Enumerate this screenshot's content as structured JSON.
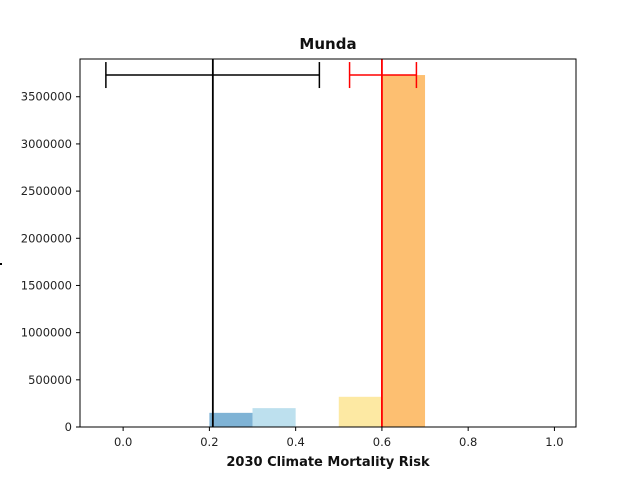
{
  "chart_data": {
    "type": "bar",
    "title": "Munda",
    "xlabel": "2030 Climate Mortality Risk",
    "ylabel": "",
    "xlim": [
      -0.1,
      1.05
    ],
    "ylim": [
      0,
      3900000
    ],
    "x_ticks": [
      0.0,
      0.2,
      0.4,
      0.6,
      0.8,
      1.0
    ],
    "x_tick_labels": [
      "0.0",
      "0.2",
      "0.4",
      "0.6",
      "0.8",
      "1.0"
    ],
    "y_ticks": [
      0,
      500000,
      1000000,
      1500000,
      2000000,
      2500000,
      3000000,
      3500000
    ],
    "y_tick_labels": [
      "0",
      "500000",
      "1000000",
      "1500000",
      "2000000",
      "2500000",
      "3000000",
      "3500000"
    ],
    "grid": false,
    "bars": [
      {
        "x_start": 0.2,
        "x_end": 0.3,
        "value": 150000,
        "color": "#7fb3d5"
      },
      {
        "x_start": 0.3,
        "x_end": 0.4,
        "value": 200000,
        "color": "#bde0ee"
      },
      {
        "x_start": 0.5,
        "x_end": 0.6,
        "value": 320000,
        "color": "#fde9a3"
      },
      {
        "x_start": 0.6,
        "x_end": 0.7,
        "value": 3730000,
        "color": "#fdbf71"
      }
    ],
    "reference_lines": [
      {
        "x": 0.208,
        "color": "#000000"
      },
      {
        "x": 0.6,
        "color": "#ff0000"
      }
    ],
    "error_bars": [
      {
        "center": 0.208,
        "low": -0.04,
        "high": 0.455,
        "y": 3730000,
        "color": "#000000"
      },
      {
        "center": 0.6,
        "low": 0.525,
        "high": 0.68,
        "y": 3730000,
        "color": "#ff0000"
      }
    ]
  }
}
